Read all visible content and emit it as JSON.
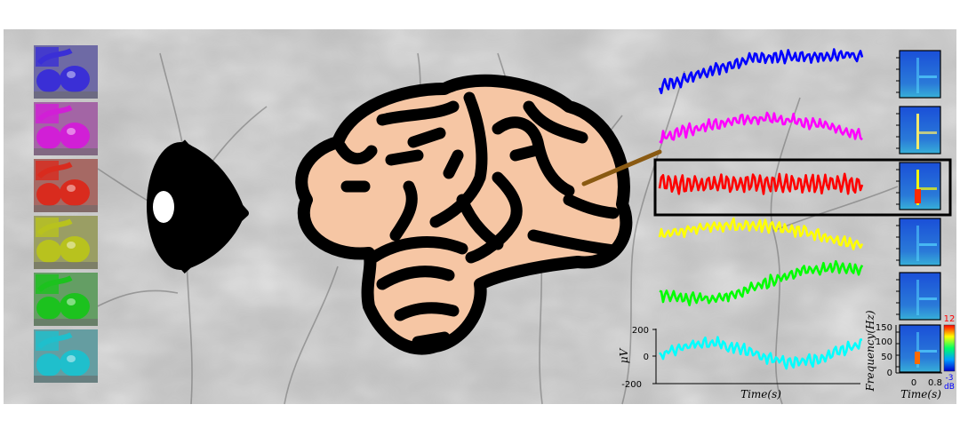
{
  "thumbnails": {
    "count": 6,
    "tints": [
      "#3a2fd6",
      "#d11fd6",
      "#d92b1e",
      "#b8c21e",
      "#1cc21e",
      "#1fbfcc"
    ]
  },
  "signals": [
    {
      "color": "#0000ff",
      "highlighted": false
    },
    {
      "color": "#ff00ff",
      "highlighted": false
    },
    {
      "color": "#ff0000",
      "highlighted": true
    },
    {
      "color": "#ffff00",
      "highlighted": false
    },
    {
      "color": "#00ff00",
      "highlighted": false
    },
    {
      "color": "#00ffff",
      "highlighted": false
    }
  ],
  "lfp_axis": {
    "ylabel": "μV",
    "yticks": [
      "200",
      "0",
      "-200"
    ],
    "xlabel": "Time(s)"
  },
  "spectrogram_axis": {
    "ylabel": "Frequency(Hz)",
    "yticks": [
      "150",
      "100",
      "50",
      "0"
    ],
    "xticks": [
      "0",
      "0.8"
    ],
    "xlabel": "Time(s)"
  },
  "colorbar": {
    "max_label": "12",
    "min_label": "-3",
    "unit": "dB",
    "max_color": "#ff0000",
    "min_color": "#0000ff"
  },
  "colors": {
    "brain_fill": "#f6c6a4",
    "electrode": "#8a5a12"
  }
}
